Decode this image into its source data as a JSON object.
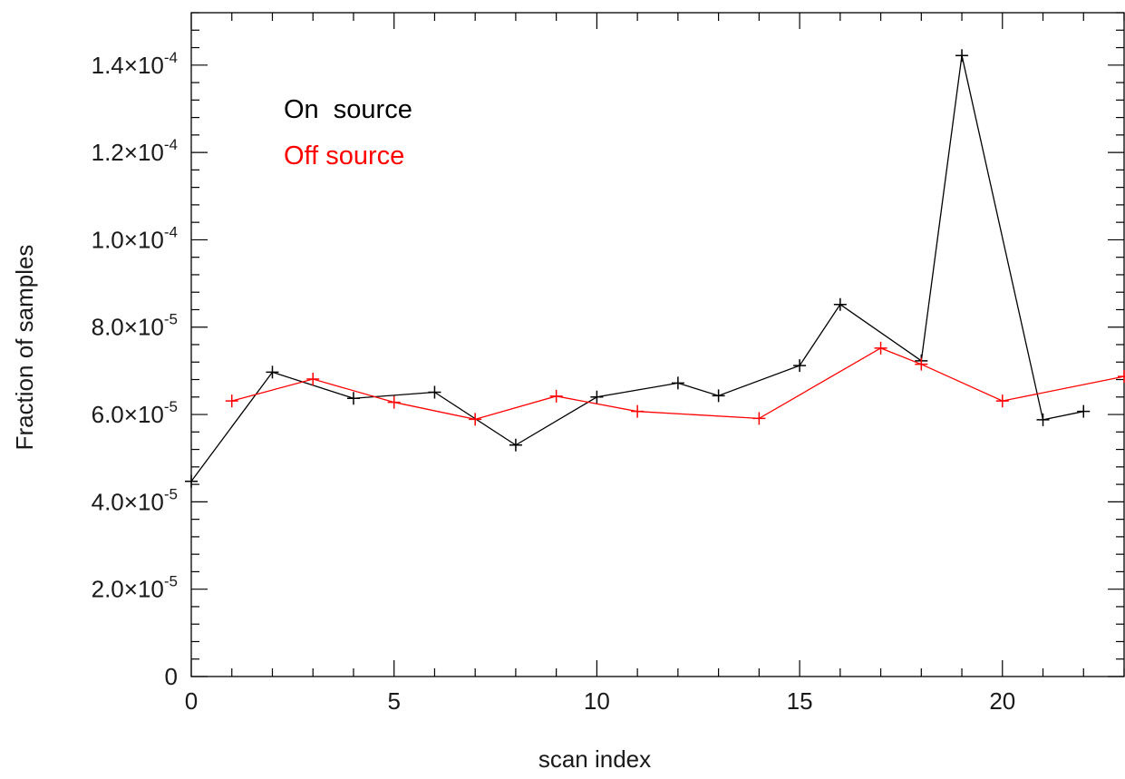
{
  "chart_data": {
    "type": "line",
    "title": "",
    "xlabel": "scan index",
    "ylabel": "Fraction of samples",
    "xlim": [
      0,
      23
    ],
    "ylim": [
      0,
      0.000152
    ],
    "x_ticks": [
      0,
      5,
      10,
      15,
      20
    ],
    "x_tick_labels": [
      "0",
      "5",
      "10",
      "15",
      "20"
    ],
    "y_ticks": [
      0,
      2e-05,
      4e-05,
      6e-05,
      8e-05,
      0.0001,
      0.00012,
      0.00014
    ],
    "y_tick_labels": [
      {
        "mantissa": "0",
        "exponent": ""
      },
      {
        "mantissa": "2.0×10",
        "exponent": "-5"
      },
      {
        "mantissa": "4.0×10",
        "exponent": "-5"
      },
      {
        "mantissa": "6.0×10",
        "exponent": "-5"
      },
      {
        "mantissa": "8.0×10",
        "exponent": "-5"
      },
      {
        "mantissa": "1.0×10",
        "exponent": "-4"
      },
      {
        "mantissa": "1.2×10",
        "exponent": "-4"
      },
      {
        "mantissa": "1.4×10",
        "exponent": "-4"
      }
    ],
    "grid": false,
    "legend_position": "top-left",
    "marker": "plus",
    "series": [
      {
        "name": "On  source",
        "color": "#000000",
        "points": [
          [
            0,
            4.47e-05
          ],
          [
            2,
            6.97e-05
          ],
          [
            4,
            6.37e-05
          ],
          [
            6,
            6.51e-05
          ],
          [
            8,
            5.3e-05
          ],
          [
            10,
            6.4e-05
          ],
          [
            12,
            6.72e-05
          ],
          [
            13,
            6.43e-05
          ],
          [
            15,
            7.12e-05
          ],
          [
            16,
            8.52e-05
          ],
          [
            18,
            7.23e-05
          ],
          [
            19,
            0.0001422
          ],
          [
            21,
            5.88e-05
          ],
          [
            22,
            6.07e-05
          ]
        ]
      },
      {
        "name": "Off source",
        "color": "#ff0000",
        "points": [
          [
            1,
            6.31e-05
          ],
          [
            3,
            6.81e-05
          ],
          [
            5,
            6.28e-05
          ],
          [
            7,
            5.89e-05
          ],
          [
            9,
            6.42e-05
          ],
          [
            11,
            6.07e-05
          ],
          [
            14,
            5.91e-05
          ],
          [
            17,
            7.52e-05
          ],
          [
            18,
            7.15e-05
          ],
          [
            20,
            6.31e-05
          ],
          [
            23,
            6.87e-05
          ]
        ]
      }
    ]
  }
}
